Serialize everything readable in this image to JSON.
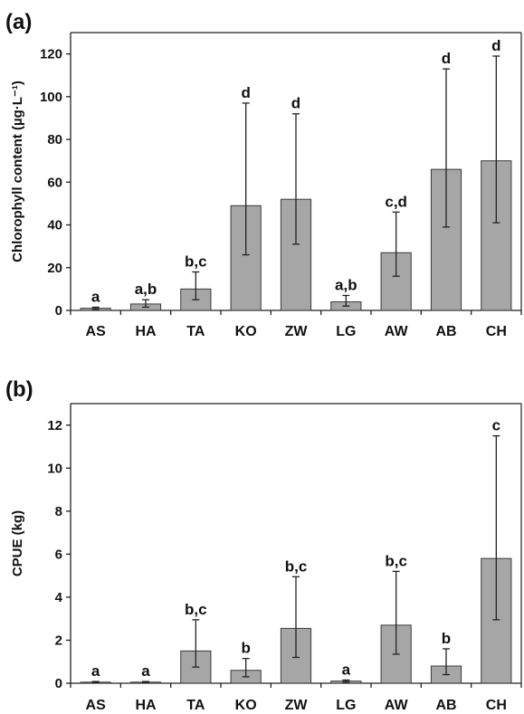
{
  "chart_data": [
    {
      "type": "bar",
      "panel_label": "(a)",
      "ylabel": "Chlorophyll content  (µg·L⁻¹)",
      "categories": [
        "AS",
        "HA",
        "TA",
        "KO",
        "ZW",
        "LG",
        "AW",
        "AB",
        "CH"
      ],
      "values": [
        1,
        3,
        10,
        49,
        52,
        4,
        27,
        66,
        70
      ],
      "error_low": [
        0.5,
        1.5,
        5,
        26,
        31,
        2,
        16,
        39,
        41
      ],
      "error_high": [
        1.5,
        5,
        18,
        97,
        92,
        7,
        46,
        113,
        119
      ],
      "letters": [
        "a",
        "a,b",
        "b,c",
        "d",
        "d",
        "a,b",
        "c,d",
        "d",
        "d"
      ],
      "ylim": [
        0,
        130
      ],
      "yticks": [
        0,
        20,
        40,
        60,
        80,
        100,
        120
      ],
      "grid": false
    },
    {
      "type": "bar",
      "panel_label": "(b)",
      "ylabel": "CPUE (kg)",
      "categories": [
        "AS",
        "HA",
        "TA",
        "KO",
        "ZW",
        "LG",
        "AW",
        "AB",
        "CH"
      ],
      "values": [
        0.05,
        0.05,
        1.5,
        0.6,
        2.55,
        0.1,
        2.7,
        0.8,
        5.8
      ],
      "error_low": [
        0.03,
        0.03,
        0.75,
        0.3,
        1.2,
        0.05,
        1.35,
        0.4,
        2.95
      ],
      "error_high": [
        0.08,
        0.08,
        2.95,
        1.15,
        4.95,
        0.15,
        5.2,
        1.6,
        11.5
      ],
      "letters": [
        "a",
        "a",
        "b,c",
        "b",
        "b,c",
        "a",
        "b,c",
        "b",
        "c"
      ],
      "ylim": [
        0,
        13
      ],
      "yticks": [
        0,
        2,
        4,
        6,
        8,
        10,
        12
      ],
      "grid": false
    }
  ]
}
